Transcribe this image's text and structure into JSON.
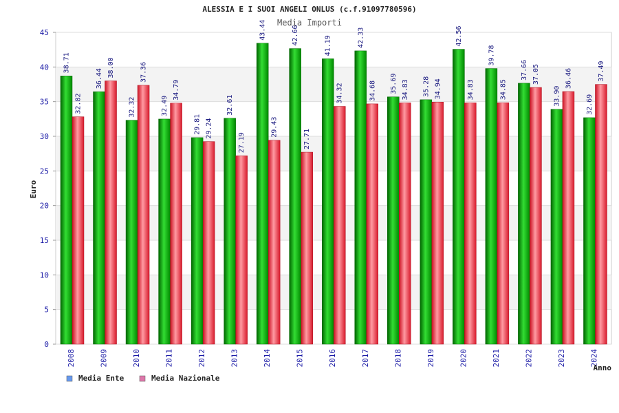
{
  "chart_data": {
    "type": "bar",
    "title": "ALESSIA E I SUOI ANGELI ONLUS (c.f.91097780596)",
    "subtitle": "Media Importi",
    "xlabel": "Anno",
    "ylabel": "Euro",
    "ylim": [
      0,
      45
    ],
    "yticks": [
      "0",
      "5",
      "10",
      "15",
      "20",
      "25",
      "30",
      "35",
      "40",
      "45"
    ],
    "grid": true,
    "legend_position": "bottom-left",
    "categories": [
      "2008",
      "2009",
      "2010",
      "2011",
      "2012",
      "2013",
      "2014",
      "2015",
      "2016",
      "2017",
      "2018",
      "2019",
      "2020",
      "2021",
      "2022",
      "2023",
      "2024"
    ],
    "series": [
      {
        "name": "Media Ente",
        "color": "#00b000",
        "legend_color": "#6699ee",
        "values": [
          38.71,
          36.44,
          32.32,
          32.49,
          29.81,
          32.61,
          43.44,
          42.66,
          41.19,
          42.33,
          35.69,
          35.28,
          42.56,
          39.78,
          37.66,
          33.9,
          32.69
        ],
        "labels": [
          "38.71",
          "36.44",
          "32.32",
          "32.49",
          "29.81",
          "32.61",
          "43.44",
          "42.66",
          "41.19",
          "42.33",
          "35.69",
          "35.28",
          "42.56",
          "39.78",
          "37.66",
          "33.90",
          "32.69"
        ]
      },
      {
        "name": "Media Nazionale",
        "color": "#e8303c",
        "legend_color": "#dd77aa",
        "values": [
          32.82,
          38.0,
          37.36,
          34.79,
          29.24,
          27.19,
          29.43,
          27.71,
          34.32,
          34.68,
          34.83,
          34.94,
          34.83,
          34.85,
          37.05,
          36.46,
          37.49
        ],
        "labels": [
          "32.82",
          "38.00",
          "37.36",
          "34.79",
          "29.24",
          "27.19",
          "29.43",
          "27.71",
          "34.32",
          "34.68",
          "34.83",
          "34.94",
          "34.83",
          "34.85",
          "37.05",
          "36.46",
          "37.49"
        ]
      }
    ]
  }
}
